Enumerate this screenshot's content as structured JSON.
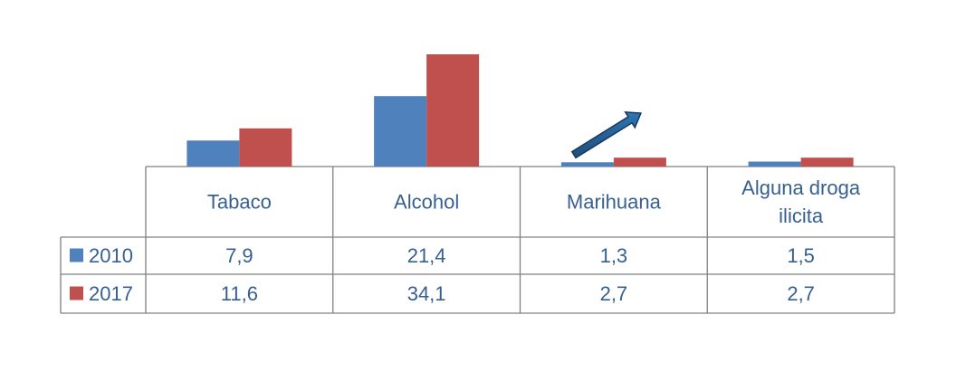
{
  "chart_data": {
    "type": "bar",
    "categories": [
      "Tabaco",
      "Alcohol",
      "Marihuana",
      "Alguna droga ilicita"
    ],
    "category_lines": [
      [
        "Tabaco"
      ],
      [
        "Alcohol"
      ],
      [
        "Marihuana"
      ],
      [
        "Alguna droga",
        "ilicita"
      ]
    ],
    "series": [
      {
        "name": "2010",
        "values": [
          7.9,
          21.4,
          1.3,
          1.5
        ],
        "labels": [
          "7,9",
          "21,4",
          "1,3",
          "1,5"
        ],
        "color": "#4F81BD"
      },
      {
        "name": "2017",
        "values": [
          11.6,
          34.1,
          2.7,
          2.7
        ],
        "labels": [
          "11,6",
          "34,1",
          "2,7",
          "2,7"
        ],
        "color": "#C0504D"
      }
    ],
    "ylim": [
      0,
      34.1
    ],
    "legend": "data-table",
    "data_table": true,
    "grid": false,
    "annotation": {
      "type": "arrow",
      "category": "Marihuana",
      "direction": "up-right",
      "color": "#1F4E79"
    },
    "text_color": "#376092",
    "table_border_color": "#808080"
  }
}
